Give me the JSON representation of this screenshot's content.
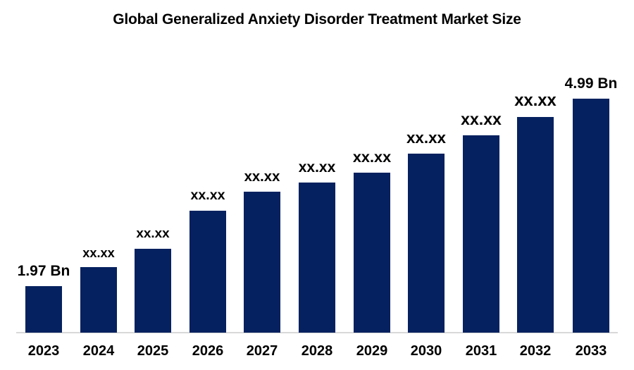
{
  "title": "Global Generalized Anxiety Disorder Treatment Market Size",
  "colors": {
    "bar": "#05215f",
    "axis_line": "#d8d8d8",
    "label_text": "#000000",
    "background": "#ffffff"
  },
  "chart_data": {
    "type": "bar",
    "title": "Global Generalized Anxiety Disorder Treatment Market Size",
    "categories": [
      "2023",
      "2024",
      "2025",
      "2026",
      "2027",
      "2028",
      "2029",
      "2030",
      "2031",
      "2032",
      "2033"
    ],
    "value_labels": [
      "1.97 Bn",
      "xx.xx",
      "xx.xx",
      "xx.xx",
      "xx.xx",
      "xx.xx",
      "xx.xx",
      "xx.xx",
      "xx.xx",
      "xx.xx",
      "4.99 Bn"
    ],
    "values_bn": [
      1.97,
      null,
      null,
      null,
      null,
      null,
      null,
      null,
      null,
      null,
      4.99
    ],
    "bar_heights_relative": [
      66,
      93,
      119,
      173,
      200,
      213,
      227,
      254,
      280,
      306,
      332
    ],
    "xlabel": "",
    "ylabel": "",
    "grid": false,
    "legend": false,
    "bar_color": "#05215f",
    "axis_line_color": "#d8d8d8"
  }
}
